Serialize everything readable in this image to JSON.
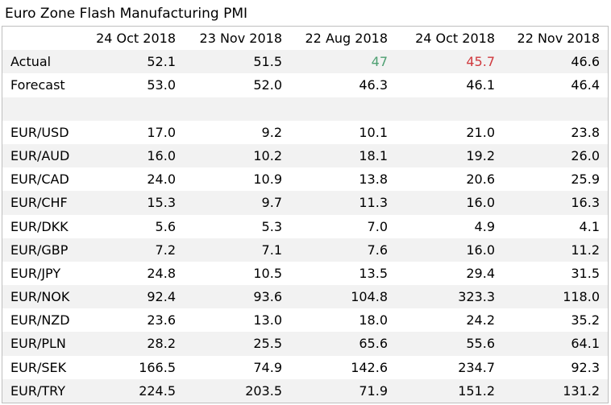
{
  "title": "Euro Zone Flash Manufacturing PMI",
  "colors": {
    "header_row_bg": "#ffffff",
    "alt_row_bg": "#f2f2f2",
    "border": "#bfbfbf",
    "positive_text": "#4ea072",
    "negative_text": "#d0393e"
  },
  "chart_data": {
    "type": "table",
    "title": "Euro Zone Flash Manufacturing PMI",
    "columns": [
      "",
      "24 Oct 2018",
      "23 Nov 2018",
      "22 Aug 2018",
      "24 Oct 2018",
      "22 Nov 2018"
    ],
    "rows": [
      {
        "label": "Actual",
        "values": [
          "52.1",
          "51.5",
          "47",
          "45.7",
          "46.6"
        ],
        "value_colors": [
          null,
          null,
          "#4ea072",
          "#d0393e",
          null
        ]
      },
      {
        "label": "Forecast",
        "values": [
          "53.0",
          "52.0",
          "46.3",
          "46.1",
          "46.4"
        ]
      },
      {
        "label": "",
        "values": [
          "",
          "",
          "",
          "",
          ""
        ]
      },
      {
        "label": "EUR/USD",
        "values": [
          "17.0",
          "9.2",
          "10.1",
          "21.0",
          "23.8"
        ]
      },
      {
        "label": "EUR/AUD",
        "values": [
          "16.0",
          "10.2",
          "18.1",
          "19.2",
          "26.0"
        ]
      },
      {
        "label": "EUR/CAD",
        "values": [
          "24.0",
          "10.9",
          "13.8",
          "20.6",
          "25.9"
        ]
      },
      {
        "label": "EUR/CHF",
        "values": [
          "15.3",
          "9.7",
          "11.3",
          "16.0",
          "16.3"
        ]
      },
      {
        "label": "EUR/DKK",
        "values": [
          "5.6",
          "5.3",
          "7.0",
          "4.9",
          "4.1"
        ]
      },
      {
        "label": "EUR/GBP",
        "values": [
          "7.2",
          "7.1",
          "7.6",
          "16.0",
          "11.2"
        ]
      },
      {
        "label": "EUR/JPY",
        "values": [
          "24.8",
          "10.5",
          "13.5",
          "29.4",
          "31.5"
        ]
      },
      {
        "label": "EUR/NOK",
        "values": [
          "92.4",
          "93.6",
          "104.8",
          "323.3",
          "118.0"
        ]
      },
      {
        "label": "EUR/NZD",
        "values": [
          "23.6",
          "13.0",
          "18.0",
          "24.2",
          "35.2"
        ]
      },
      {
        "label": "EUR/PLN",
        "values": [
          "28.2",
          "25.5",
          "65.6",
          "55.6",
          "64.1"
        ]
      },
      {
        "label": "EUR/SEK",
        "values": [
          "166.5",
          "74.9",
          "142.6",
          "234.7",
          "92.3"
        ]
      },
      {
        "label": "EUR/TRY",
        "values": [
          "224.5",
          "203.5",
          "71.9",
          "151.2",
          "131.2"
        ]
      }
    ]
  }
}
